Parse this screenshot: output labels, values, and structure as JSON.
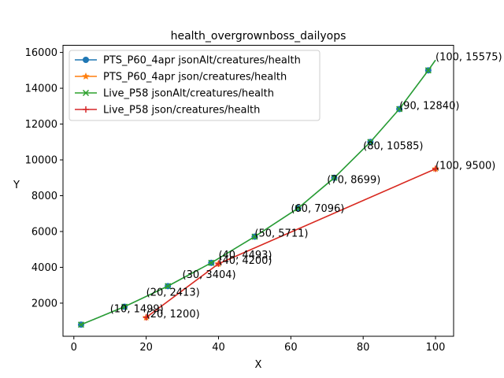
{
  "chart_data": {
    "type": "line",
    "title": "health_overgrownboss_dailyops",
    "xlabel": "X",
    "ylabel": "Y",
    "xlim": [
      -3,
      105
    ],
    "ylim": [
      150,
      16400
    ],
    "xticks": [
      0,
      20,
      40,
      60,
      80,
      100
    ],
    "yticks": [
      2000,
      4000,
      6000,
      8000,
      10000,
      12000,
      14000,
      16000
    ],
    "grid": false,
    "legend_position": "top-left",
    "series": [
      {
        "name": "PTS_P60_4apr jsonAlt/creatures/health",
        "color": "#1f77b4",
        "marker": "circle",
        "x": [
          2,
          14,
          26,
          38,
          50,
          62,
          72,
          82,
          90,
          98,
          100
        ],
        "y": [
          800,
          1800,
          2950,
          4250,
          5711,
          7300,
          9000,
          11000,
          12840,
          15000,
          15575
        ]
      },
      {
        "name": "PTS_P60_4apr json/creatures/health",
        "color": "#ff7f0e",
        "marker": "star",
        "x": [
          20,
          40,
          100
        ],
        "y": [
          1200,
          4200,
          9500
        ]
      },
      {
        "name": "Live_P58 jsonAlt/creatures/health",
        "color": "#2ca02c",
        "marker": "x",
        "x": [
          2,
          14,
          26,
          38,
          50,
          62,
          72,
          82,
          90,
          98,
          100
        ],
        "y": [
          800,
          1800,
          2950,
          4250,
          5711,
          7300,
          9000,
          11000,
          12840,
          15000,
          15575
        ]
      },
      {
        "name": "Live_P58 json/creatures/health",
        "color": "#d62728",
        "marker": "plus",
        "x": [
          20,
          40,
          100
        ],
        "y": [
          1200,
          4200,
          9500
        ]
      }
    ],
    "annotations": [
      {
        "x": 10,
        "y": 1499,
        "text": "(10, 1499)"
      },
      {
        "x": 20,
        "y": 2413,
        "text": "(20, 2413)"
      },
      {
        "x": 30,
        "y": 3404,
        "text": "(30, 3404)"
      },
      {
        "x": 40,
        "y": 4493,
        "text": "(40, 4493)"
      },
      {
        "x": 50,
        "y": 5711,
        "text": "(50, 5711)"
      },
      {
        "x": 60,
        "y": 7096,
        "text": "(60, 7096)"
      },
      {
        "x": 70,
        "y": 8699,
        "text": "(70, 8699)"
      },
      {
        "x": 80,
        "y": 10585,
        "text": "(80, 10585)"
      },
      {
        "x": 90,
        "y": 12840,
        "text": "(90, 12840)"
      },
      {
        "x": 100,
        "y": 15575,
        "text": "(100, 15575)"
      },
      {
        "x": 20,
        "y": 1200,
        "text": "(20, 1200)"
      },
      {
        "x": 40,
        "y": 4200,
        "text": "(40, 4200)"
      },
      {
        "x": 100,
        "y": 9500,
        "text": "(100, 9500)"
      }
    ]
  }
}
